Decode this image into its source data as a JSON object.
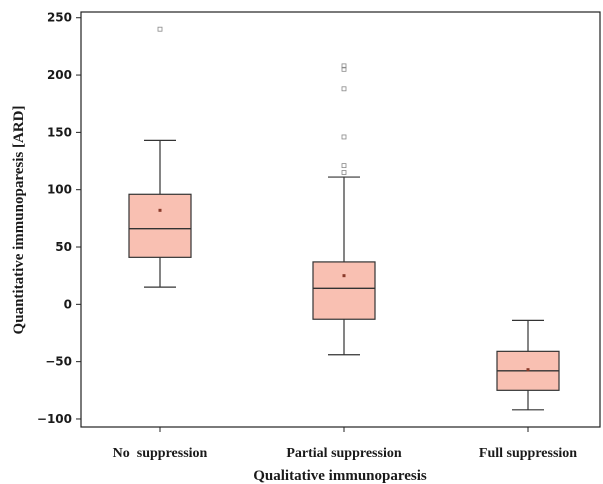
{
  "chart_data": {
    "type": "box",
    "xlabel": "Qualitative immunoparesis",
    "ylabel": "Quantitative immunoparesis [ARD]",
    "ylim": [
      -107,
      255
    ],
    "yticks": [
      250,
      200,
      150,
      100,
      50,
      0,
      -50,
      -100
    ],
    "ytick_labels": [
      "250",
      "200",
      "150",
      "100",
      "50",
      "0",
      "−50",
      "−100"
    ],
    "grid": false,
    "box_color": "#f9c0b2",
    "categories": [
      "No  suppression",
      "Partial suppression",
      "Full suppression"
    ],
    "boxes": [
      {
        "category": "No  suppression",
        "whisker_low": 15,
        "q1": 41,
        "median": 66,
        "q3": 96,
        "whisker_high": 143,
        "mean": 82,
        "outliers": [
          240
        ]
      },
      {
        "category": "Partial suppression",
        "whisker_low": -44,
        "q1": -13,
        "median": 14,
        "q3": 37,
        "whisker_high": 111,
        "mean": 25,
        "outliers": [
          115,
          121,
          146,
          188,
          205,
          208
        ]
      },
      {
        "category": "Full suppression",
        "whisker_low": -92,
        "q1": -75,
        "median": -58,
        "q3": -41,
        "whisker_high": -14,
        "mean": -57,
        "outliers": []
      }
    ]
  }
}
